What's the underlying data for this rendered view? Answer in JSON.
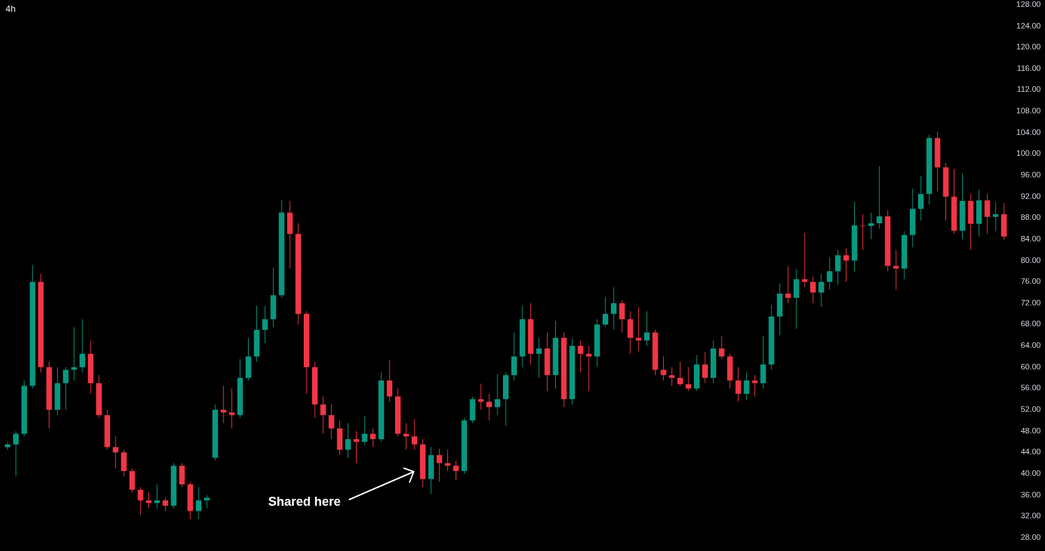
{
  "chart_data": {
    "type": "candlestick",
    "title": "4h",
    "categories": [
      null,
      null,
      null,
      null,
      null,
      null,
      null,
      null,
      null,
      null,
      null,
      null,
      null,
      null,
      null,
      null,
      null,
      null,
      null,
      null,
      null,
      null,
      null,
      null,
      null,
      null,
      null,
      null,
      null,
      null,
      null,
      null,
      null,
      null,
      null,
      null,
      null,
      null,
      null,
      null,
      null,
      null,
      null,
      null,
      null,
      null,
      null,
      null,
      null,
      null,
      null,
      null,
      null,
      null,
      null,
      null,
      null,
      null,
      null,
      null,
      null,
      null,
      null,
      null,
      null,
      null,
      null,
      null,
      null,
      null,
      null,
      null,
      null,
      null,
      null,
      null,
      null,
      null,
      null,
      null,
      null,
      null,
      null,
      null,
      null,
      null,
      null,
      null,
      null,
      null,
      null,
      null,
      null,
      null,
      null,
      null,
      null,
      null,
      null,
      null,
      null,
      null,
      null,
      null,
      null,
      null,
      null,
      null,
      null,
      null,
      null,
      null,
      null,
      null,
      null,
      null,
      null,
      null,
      null,
      null,
      null
    ],
    "ohlc": [
      [
        45,
        46,
        44.5,
        45.5
      ],
      [
        45.5,
        48,
        39.5,
        47.5
      ],
      [
        47.5,
        57.5,
        47,
        56.5
      ],
      [
        56.5,
        79.2,
        56,
        76
      ],
      [
        76,
        77.5,
        59,
        60
      ],
      [
        60,
        61,
        48.5,
        52
      ],
      [
        52,
        60,
        51,
        57
      ],
      [
        57,
        60,
        52,
        59.5
      ],
      [
        59.5,
        67.5,
        57.5,
        60
      ],
      [
        60,
        69,
        59,
        62.5
      ],
      [
        62.5,
        65,
        55,
        57
      ],
      [
        57,
        58.5,
        50.5,
        51
      ],
      [
        51,
        52,
        44.5,
        45
      ],
      [
        45,
        47,
        41,
        44
      ],
      [
        44,
        44.5,
        39.5,
        40.5
      ],
      [
        40.5,
        41,
        36.5,
        37
      ],
      [
        37,
        37.5,
        32.3,
        35
      ],
      [
        35,
        36.5,
        33.5,
        34.5
      ],
      [
        34.5,
        38,
        33.5,
        35
      ],
      [
        35,
        35.5,
        33,
        34
      ],
      [
        34,
        42,
        33.5,
        41.5
      ],
      [
        41.5,
        42,
        37.5,
        38
      ],
      [
        38,
        38.5,
        31.5,
        33
      ],
      [
        33,
        37.5,
        31.5,
        35
      ],
      [
        35,
        36,
        33.5,
        35.5
      ],
      [
        43,
        53,
        42.5,
        52
      ],
      [
        52,
        56.5,
        49.5,
        51.5
      ],
      [
        51.5,
        56,
        48.5,
        51
      ],
      [
        51,
        61.5,
        50.5,
        58
      ],
      [
        58,
        65.5,
        57.5,
        62
      ],
      [
        62,
        71.5,
        61,
        67
      ],
      [
        67,
        71.5,
        64.5,
        69
      ],
      [
        69,
        78.7,
        67.5,
        73.5
      ],
      [
        73.5,
        91.4,
        73,
        89
      ],
      [
        89,
        91.2,
        78.5,
        85
      ],
      [
        85,
        87,
        68,
        70
      ],
      [
        70,
        70.5,
        55,
        60
      ],
      [
        60,
        61,
        50.5,
        53
      ],
      [
        53,
        54.5,
        47.5,
        51
      ],
      [
        51,
        53,
        46.5,
        48.5
      ],
      [
        48.5,
        50,
        43.5,
        44.5
      ],
      [
        44.5,
        49.5,
        43,
        46.5
      ],
      [
        46.5,
        48,
        42,
        46
      ],
      [
        46,
        50.8,
        45.5,
        47.5
      ],
      [
        47.5,
        48.5,
        45,
        46.5
      ],
      [
        46.5,
        59,
        46,
        57.5
      ],
      [
        57.5,
        61.4,
        53.5,
        54.5
      ],
      [
        54.5,
        56,
        47,
        47.5
      ],
      [
        47.5,
        49.5,
        44.5,
        47
      ],
      [
        47,
        50.3,
        44.5,
        45.5
      ],
      [
        45.5,
        46.5,
        37.5,
        39
      ],
      [
        39,
        45,
        36.2,
        43.5
      ],
      [
        43.5,
        44.7,
        38.5,
        42
      ],
      [
        42,
        44.5,
        40.5,
        41.5
      ],
      [
        41.5,
        42.5,
        38.8,
        40.5
      ],
      [
        40.5,
        50.5,
        40,
        50
      ],
      [
        50,
        54.5,
        49.5,
        54
      ],
      [
        54,
        56.9,
        52,
        53.5
      ],
      [
        53.5,
        55,
        50,
        52.5
      ],
      [
        52.5,
        58.7,
        51,
        54
      ],
      [
        54,
        59,
        49,
        58.5
      ],
      [
        58.5,
        66.5,
        57.5,
        62
      ],
      [
        62,
        71.5,
        60,
        69
      ],
      [
        69,
        72,
        60.5,
        62.5
      ],
      [
        62.5,
        65.5,
        58,
        63.5
      ],
      [
        63.5,
        66.5,
        55.5,
        58.5
      ],
      [
        58.5,
        68.7,
        56,
        65.5
      ],
      [
        65.5,
        66.5,
        52.5,
        54
      ],
      [
        54,
        65.3,
        53,
        64
      ],
      [
        64,
        65,
        59,
        62.5
      ],
      [
        62.5,
        64,
        55.5,
        62
      ],
      [
        62,
        69,
        60,
        68
      ],
      [
        68,
        73.2,
        67.5,
        70
      ],
      [
        70,
        75,
        67,
        72
      ],
      [
        72,
        72.5,
        66.5,
        69
      ],
      [
        69,
        70.5,
        62.5,
        65.5
      ],
      [
        65.5,
        71.3,
        63,
        65
      ],
      [
        65,
        70.5,
        64,
        66.5
      ],
      [
        66.5,
        67,
        58.5,
        59.5
      ],
      [
        59.5,
        62,
        57.5,
        58.5
      ],
      [
        58.5,
        60,
        56.5,
        58
      ],
      [
        58,
        61,
        56.5,
        56.8
      ],
      [
        56.8,
        60,
        55.5,
        56
      ],
      [
        56,
        62.3,
        55.5,
        60.5
      ],
      [
        60.5,
        62.8,
        57,
        58
      ],
      [
        58,
        65,
        57,
        63.5
      ],
      [
        63.5,
        65.9,
        61.5,
        62
      ],
      [
        62,
        62.5,
        56,
        57.5
      ],
      [
        57.5,
        60,
        53.5,
        55
      ],
      [
        55,
        59,
        53.8,
        57.5
      ],
      [
        57.5,
        58.5,
        54.5,
        57
      ],
      [
        57,
        65.9,
        56,
        60.5
      ],
      [
        60.5,
        71.7,
        59.5,
        69.5
      ],
      [
        69.5,
        75.7,
        66,
        73.8
      ],
      [
        73.8,
        78.9,
        72,
        73
      ],
      [
        73,
        78.4,
        67.2,
        76.5
      ],
      [
        76.5,
        85.2,
        75,
        76
      ],
      [
        76,
        77,
        72,
        74
      ],
      [
        74,
        77.5,
        71.3,
        76
      ],
      [
        76,
        80.6,
        74.5,
        78
      ],
      [
        78,
        82,
        75.5,
        81
      ],
      [
        81,
        82.3,
        76,
        80
      ],
      [
        80,
        91,
        78,
        86.6
      ],
      [
        86.6,
        88.7,
        82,
        86.5
      ],
      [
        86.5,
        89,
        84,
        87
      ],
      [
        87,
        97.7,
        86,
        88.3
      ],
      [
        88.3,
        89.5,
        78,
        79
      ],
      [
        79,
        82,
        74.5,
        78.5
      ],
      [
        78.5,
        85.5,
        76.5,
        84.8
      ],
      [
        84.8,
        93.5,
        82.5,
        89.7
      ],
      [
        89.7,
        95.9,
        87.5,
        92.5
      ],
      [
        92.5,
        103.6,
        90.5,
        103
      ],
      [
        103,
        104.2,
        93,
        97.5
      ],
      [
        97.5,
        98.3,
        87.5,
        92
      ],
      [
        92,
        97.2,
        85,
        85.6
      ],
      [
        85.6,
        96.3,
        84,
        91.2
      ],
      [
        91.2,
        92.5,
        82,
        86.9
      ],
      [
        86.9,
        93.3,
        84.5,
        91.3
      ],
      [
        91.3,
        92.5,
        85,
        88.2
      ],
      [
        88.2,
        91,
        85.5,
        88.7
      ],
      [
        88.7,
        90.8,
        83.9,
        84.5
      ]
    ],
    "colors": [
      "#089981",
      "#089981",
      "#089981",
      "#089981",
      "#f23645",
      "#f23645",
      "#089981",
      "#089981",
      "#089981",
      "#089981",
      "#f23645",
      "#f23645",
      "#f23645",
      "#f23645",
      "#f23645",
      "#f23645",
      "#f23645",
      "#f23645",
      "#089981",
      "#f23645",
      "#089981",
      "#f23645",
      "#f23645",
      "#089981",
      "#089981",
      "#089981",
      "#f23645",
      "#f23645",
      "#089981",
      "#089981",
      "#089981",
      "#089981",
      "#089981",
      "#089981",
      "#f23645",
      "#f23645",
      "#f23645",
      "#f23645",
      "#f23645",
      "#f23645",
      "#f23645",
      "#089981",
      "#f23645",
      "#089981",
      "#f23645",
      "#089981",
      "#f23645",
      "#f23645",
      "#f23645",
      "#f23645",
      "#f23645",
      "#089981",
      "#f23645",
      "#f23645",
      "#f23645",
      "#089981",
      "#089981",
      "#f23645",
      "#f23645",
      "#089981",
      "#089981",
      "#089981",
      "#089981",
      "#f23645",
      "#089981",
      "#f23645",
      "#089981",
      "#f23645",
      "#089981",
      "#f23645",
      "#f23645",
      "#089981",
      "#089981",
      "#089981",
      "#f23645",
      "#f23645",
      "#f23645",
      "#089981",
      "#f23645",
      "#f23645",
      "#f23645",
      "#f23645",
      "#f23645",
      "#089981",
      "#f23645",
      "#089981",
      "#f23645",
      "#f23645",
      "#f23645",
      "#089981",
      "#f23645",
      "#089981",
      "#089981",
      "#089981",
      "#f23645",
      "#089981",
      "#f23645",
      "#f23645",
      "#089981",
      "#089981",
      "#089981",
      "#f23645",
      "#089981",
      "#f23645",
      "#089981",
      "#089981",
      "#f23645",
      "#f23645",
      "#089981",
      "#089981",
      "#089981",
      "#089981",
      "#f23645",
      "#f23645",
      "#f23645",
      "#089981",
      "#f23645",
      "#089981",
      "#f23645",
      "#089981",
      "#f23645"
    ],
    "ylim": [
      25.5,
      128.9
    ],
    "yticks": [
      {
        "value": 28,
        "label": "28.00"
      },
      {
        "value": 32,
        "label": "32.00"
      },
      {
        "value": 36,
        "label": "36.00"
      },
      {
        "value": 40,
        "label": "40.00"
      },
      {
        "value": 44,
        "label": "44.00"
      },
      {
        "value": 48,
        "label": "48.00"
      },
      {
        "value": 52,
        "label": "52.00"
      },
      {
        "value": 56,
        "label": "56.00"
      },
      {
        "value": 60,
        "label": "60.00"
      },
      {
        "value": 64,
        "label": "64.00"
      },
      {
        "value": 68,
        "label": "68.00"
      },
      {
        "value": 72,
        "label": "72.00"
      },
      {
        "value": 76,
        "label": "76.00"
      },
      {
        "value": 80,
        "label": "80.00"
      },
      {
        "value": 84,
        "label": "84.00"
      },
      {
        "value": 88,
        "label": "88.00"
      },
      {
        "value": 92,
        "label": "92.00"
      },
      {
        "value": 96,
        "label": "96.00"
      },
      {
        "value": 100,
        "label": "100.00"
      },
      {
        "value": 104,
        "label": "104.00"
      },
      {
        "value": 108,
        "label": "108.00"
      },
      {
        "value": 112,
        "label": "112.00"
      },
      {
        "value": 116,
        "label": "116.00"
      },
      {
        "value": 120,
        "label": "120.00"
      },
      {
        "value": 124,
        "label": "124.00"
      },
      {
        "value": 128,
        "label": "128.00"
      }
    ],
    "tick_labels": "y",
    "annotations": [
      "Shared here"
    ]
  }
}
